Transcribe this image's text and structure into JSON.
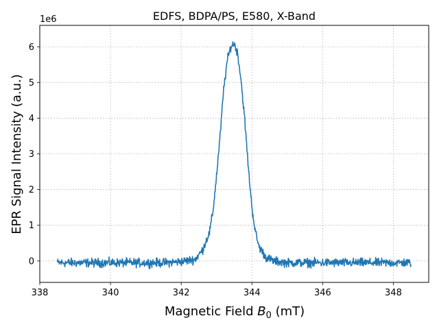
{
  "chart_data": {
    "type": "line",
    "title": "EDFS, BDPA/PS, E580, X-Band",
    "xlabel_main": "Magnetic Field ",
    "xlabel_symbol": "B",
    "xlabel_sub": "0",
    "xlabel_unit": " (mT)",
    "ylabel": "EPR Signal Intensity (a.u.)",
    "y_offset_text": "1e6",
    "xlim": [
      338,
      349
    ],
    "ylim": [
      -0.6,
      6.6
    ],
    "x_scale_note": "",
    "grid": true,
    "xticks": [
      338,
      340,
      342,
      344,
      346,
      348
    ],
    "xtick_labels": [
      "338",
      "340",
      "342",
      "344",
      "346",
      "348"
    ],
    "yticks": [
      0,
      1,
      2,
      3,
      4,
      5,
      6
    ],
    "ytick_labels": [
      "0",
      "1",
      "2",
      "3",
      "4",
      "5",
      "6"
    ],
    "line_color": "#1f77b4",
    "series": [
      {
        "x": [
          338.5,
          339.0,
          339.5,
          340.0,
          340.5,
          341.0,
          341.5,
          342.0,
          342.4,
          342.6,
          342.8,
          342.9,
          343.0,
          343.1,
          343.2,
          343.3,
          343.4,
          343.5,
          343.6,
          343.7,
          343.8,
          343.9,
          344.0,
          344.1,
          344.2,
          344.4,
          344.6,
          345.0,
          345.5,
          346.0,
          346.5,
          347.0,
          347.5,
          348.0,
          348.5
        ],
        "y": [
          -0.05,
          -0.05,
          -0.05,
          -0.05,
          -0.05,
          -0.05,
          -0.05,
          -0.02,
          0.05,
          0.3,
          0.8,
          1.4,
          2.4,
          3.5,
          4.8,
          5.6,
          6.0,
          6.1,
          5.8,
          5.0,
          3.9,
          2.6,
          1.5,
          0.8,
          0.4,
          0.1,
          0.0,
          -0.05,
          -0.05,
          -0.05,
          -0.05,
          -0.05,
          -0.05,
          -0.05,
          -0.05
        ]
      }
    ]
  }
}
